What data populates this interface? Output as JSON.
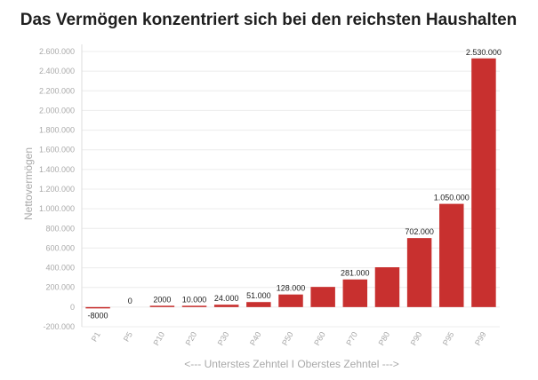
{
  "chart_data": {
    "type": "bar",
    "title": "Das Vermögen konzentriert sich bei den reichsten Haushalten",
    "xlabel": "<--- Unterstes Zehntel I Oberstes Zehntel --->",
    "ylabel": "Nettovermögen",
    "categories": [
      "P1",
      "P5",
      "P10",
      "P20",
      "P30",
      "P40",
      "P50",
      "P60",
      "P70",
      "P80",
      "P90",
      "P95",
      "P99"
    ],
    "values": [
      -8000,
      0,
      2000,
      10000,
      24000,
      51000,
      128000,
      205000,
      281000,
      405000,
      702000,
      1050000,
      2530000
    ],
    "data_labels": [
      "-8000",
      "0",
      "2000",
      "10.000",
      "24.000",
      "51.000",
      "128.000",
      "",
      "281.000",
      "",
      "702.000",
      "1.050.000",
      "2.530.000"
    ],
    "ylim": [
      -200000,
      2600000
    ],
    "yticks": [
      -200000,
      0,
      200000,
      400000,
      600000,
      800000,
      1000000,
      1200000,
      1400000,
      1600000,
      1800000,
      2000000,
      2200000,
      2400000,
      2600000
    ],
    "ytick_labels": [
      "-200.000",
      "0",
      "200.000",
      "400.000",
      "600.000",
      "800.000",
      "1.000.000",
      "1.200.000",
      "1.400.000",
      "1.600.000",
      "1.800.000",
      "2.000.000",
      "2.200.000",
      "2.400.000",
      "2.600.000"
    ],
    "grid": true,
    "bar_color": "#c8302f"
  }
}
